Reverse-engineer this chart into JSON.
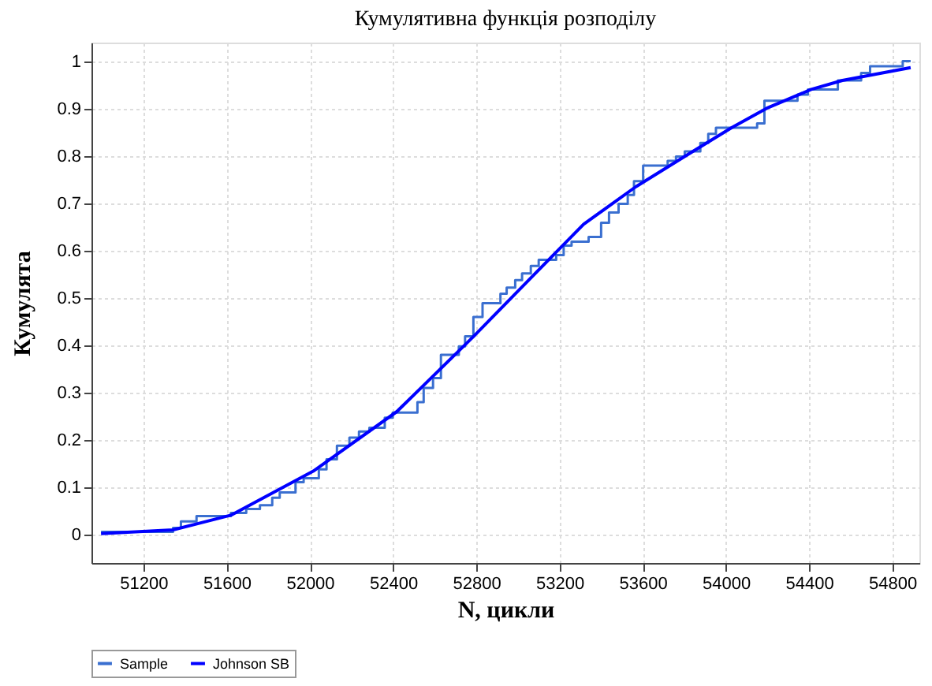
{
  "chart_data": {
    "type": "line",
    "title": "Кумулятивна функція розподілу",
    "xlabel": "N, цикли",
    "ylabel": "Кумулята",
    "xlim": [
      50950,
      54930
    ],
    "xticks": [
      51200,
      51600,
      52000,
      52400,
      52800,
      53200,
      53600,
      54000,
      54400,
      54800
    ],
    "ylim": [
      -0.06,
      1.04
    ],
    "yticks": [
      0,
      0.1,
      0.2,
      0.3,
      0.4,
      0.5,
      0.6,
      0.7,
      0.8,
      0.9,
      1
    ],
    "grid": true,
    "legend": "bottom",
    "marker": "none",
    "line_style": "solid",
    "series": [
      {
        "name": "Sample",
        "type": "step",
        "color": "#3a6fd0",
        "x": [
          50996,
          51342,
          51380,
          51455,
          51620,
          51694,
          51760,
          51819,
          51855,
          51931,
          51970,
          52043,
          52080,
          52130,
          52190,
          52236,
          52286,
          52360,
          52398,
          52517,
          52547,
          52592,
          52630,
          52716,
          52746,
          52786,
          52830,
          52916,
          52946,
          52987,
          53020,
          53062,
          53100,
          53184,
          53220,
          53258,
          53340,
          53400,
          53438,
          53484,
          53528,
          53558,
          53602,
          53720,
          53760,
          53802,
          53877,
          53915,
          53952,
          54150,
          54185,
          54344,
          54394,
          54538,
          54650,
          54693,
          54850,
          54888
        ],
        "values": [
          0.006,
          0.014,
          0.028,
          0.039,
          0.046,
          0.054,
          0.062,
          0.078,
          0.089,
          0.111,
          0.119,
          0.138,
          0.159,
          0.188,
          0.205,
          0.218,
          0.226,
          0.247,
          0.258,
          0.28,
          0.31,
          0.331,
          0.38,
          0.398,
          0.419,
          0.46,
          0.489,
          0.509,
          0.522,
          0.538,
          0.552,
          0.568,
          0.581,
          0.591,
          0.611,
          0.619,
          0.629,
          0.659,
          0.681,
          0.699,
          0.718,
          0.747,
          0.78,
          0.79,
          0.799,
          0.81,
          0.828,
          0.847,
          0.86,
          0.869,
          0.917,
          0.93,
          0.941,
          0.96,
          0.976,
          0.99,
          1.001,
          1.001
        ]
      },
      {
        "name": "Johnson SB",
        "color": "#0000ff",
        "x": [
          50996,
          51342,
          51620,
          52016,
          52418,
          52787,
          53070,
          53316,
          53566,
          53815,
          54027,
          54195,
          54410,
          54560,
          54888
        ],
        "values": [
          0.002,
          0.01,
          0.041,
          0.134,
          0.26,
          0.419,
          0.546,
          0.656,
          0.735,
          0.803,
          0.86,
          0.901,
          0.941,
          0.96,
          0.987
        ]
      }
    ]
  }
}
